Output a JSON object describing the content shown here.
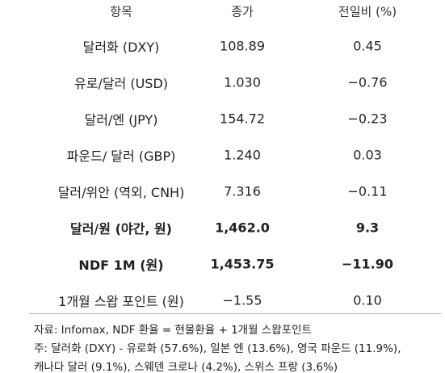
{
  "table": {
    "header": [
      "항목",
      "종가",
      "전일비 (%)"
    ],
    "rows": [
      [
        "달러화 (DXY)",
        "108.89",
        "0.45"
      ],
      [
        "유로/달러 (USD)",
        "1.030",
        "−0.76"
      ],
      [
        "달러/엔 (JPY)",
        "154.72",
        "−0.23"
      ],
      [
        "파운드/ 달러 (GBP)",
        "1.240",
        "0.03"
      ],
      [
        "달러/위안 (역외, CNH)",
        "7.316",
        "−0.11"
      ],
      [
        "달러/원 (야간, 원)",
        "1,462.0",
        "9.3"
      ],
      [
        "NDF 1M (원)",
        "1,453.75",
        "−11.90"
      ],
      [
        "1개월 스왑 포인트 (원)",
        "−1.55",
        "0.10"
      ]
    ],
    "bold_rows": [
      5,
      6
    ]
  },
  "notes": [
    "자료: Infomax, NDF 환율 = 현물환율 + 1개월 스왑포인트",
    "주: 달러화 (DXY) - 유로화 (57.6%), 일본 엔 (13.6%), 영국 파운드 (11.9%),",
    "캐나다 달러 (9.1%), 스웨덴 크로나 (4.2%), 스위스 프랑 (3.6%)"
  ]
}
